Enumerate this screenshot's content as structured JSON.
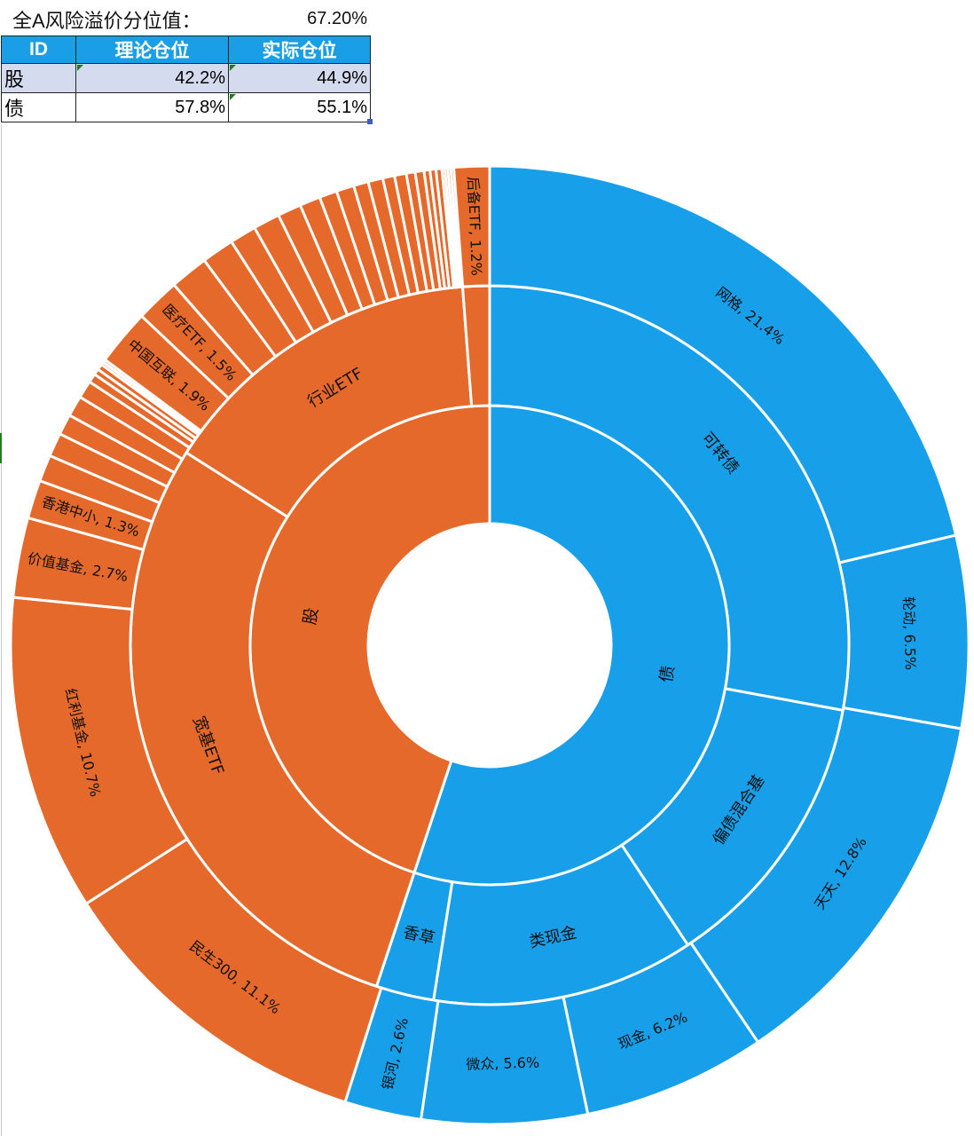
{
  "header": {
    "label": "全A风险溢价分位值：",
    "value": "67.20%"
  },
  "position_table": {
    "columns": [
      "ID",
      "理论仓位",
      "实际仓位"
    ],
    "rows": [
      {
        "id": "股",
        "theoretical": "42.2%",
        "actual": "44.9%"
      },
      {
        "id": "债",
        "theoretical": "57.8%",
        "actual": "55.1%"
      }
    ]
  },
  "chart_data": {
    "type": "sunburst",
    "colors": {
      "股": "#e5692a",
      "债": "#189fe9"
    },
    "rings": [
      {
        "level": "inner",
        "segments": [
          {
            "label": "债",
            "value": 55.1,
            "group": "债"
          },
          {
            "label": "股",
            "value": 44.9,
            "group": "股"
          }
        ]
      },
      {
        "level": "middle",
        "segments": [
          {
            "label": "可转债",
            "value": 27.9,
            "group": "债"
          },
          {
            "label": "偏债混合基",
            "value": 12.8,
            "group": "债"
          },
          {
            "label": "类现金",
            "value": 11.8,
            "group": "债"
          },
          {
            "label": "香草",
            "value": 2.6,
            "group": "债"
          },
          {
            "label": "宽基ETF",
            "value": 28.9,
            "group": "股"
          },
          {
            "label": "行业ETF",
            "value": 14.8,
            "group": "股"
          },
          {
            "label": "",
            "value": 1.2,
            "group": "股"
          }
        ]
      },
      {
        "level": "outer",
        "segments": [
          {
            "label": "网格, 21.4%",
            "value": 21.4,
            "group": "债"
          },
          {
            "label": "轮动, 6.5%",
            "value": 6.5,
            "group": "债"
          },
          {
            "label": "天天, 12.8%",
            "value": 12.8,
            "group": "债"
          },
          {
            "label": "现金, 6.2%",
            "value": 6.2,
            "group": "债"
          },
          {
            "label": "微众, 5.6%",
            "value": 5.6,
            "group": "债"
          },
          {
            "label": "银河, 2.6%",
            "value": 2.6,
            "group": "债"
          },
          {
            "label": "民生300, 11.1%",
            "value": 11.1,
            "group": "股"
          },
          {
            "label": "红利基金, 10.7%",
            "value": 10.7,
            "group": "股"
          },
          {
            "label": "价值基金, 2.7%",
            "value": 2.7,
            "group": "股"
          },
          {
            "label": "香港中小, 1.3%",
            "value": 1.3,
            "group": "股"
          },
          {
            "label": "",
            "value": 0.9,
            "group": "股"
          },
          {
            "label": "",
            "value": 0.8,
            "group": "股"
          },
          {
            "label": "",
            "value": 0.7,
            "group": "股"
          },
          {
            "label": "",
            "value": 0.7,
            "group": "股"
          },
          {
            "label": "",
            "value": 0.6,
            "group": "股"
          },
          {
            "label": "",
            "value": 0.3,
            "group": "股"
          },
          {
            "label": "",
            "value": 0.2,
            "group": "股"
          },
          {
            "label": "",
            "value": 0.2,
            "group": "股"
          },
          {
            "label": "",
            "value": 0.1,
            "group": "股"
          },
          {
            "label": "",
            "value": 0.1,
            "group": "股"
          },
          {
            "label": "中国互联, 1.9%",
            "value": 1.9,
            "group": "股"
          },
          {
            "label": "医疗ETF, 1.5%",
            "value": 1.5,
            "group": "股"
          },
          {
            "label": "",
            "value": 1.3,
            "group": "股"
          },
          {
            "label": "",
            "value": 1.1,
            "group": "股"
          },
          {
            "label": "",
            "value": 0.9,
            "group": "股"
          },
          {
            "label": "",
            "value": 0.9,
            "group": "股"
          },
          {
            "label": "",
            "value": 0.8,
            "group": "股"
          },
          {
            "label": "",
            "value": 0.7,
            "group": "股"
          },
          {
            "label": "",
            "value": 0.6,
            "group": "股"
          },
          {
            "label": "",
            "value": 0.6,
            "group": "股"
          },
          {
            "label": "",
            "value": 0.5,
            "group": "股"
          },
          {
            "label": "",
            "value": 0.5,
            "group": "股"
          },
          {
            "label": "",
            "value": 0.4,
            "group": "股"
          },
          {
            "label": "",
            "value": 0.4,
            "group": "股"
          },
          {
            "label": "",
            "value": 0.3,
            "group": "股"
          },
          {
            "label": "",
            "value": 0.3,
            "group": "股"
          },
          {
            "label": "",
            "value": 0.2,
            "group": "股"
          },
          {
            "label": "",
            "value": 0.2,
            "group": "股"
          },
          {
            "label": "",
            "value": 0.2,
            "group": "股"
          },
          {
            "label": "",
            "value": 0.1,
            "group": "股"
          },
          {
            "label": "",
            "value": 0.1,
            "group": "股"
          },
          {
            "label": "",
            "value": 0.1,
            "group": "股"
          },
          {
            "label": "",
            "value": 0.1,
            "group": "股"
          },
          {
            "label": "后备ETF, 1.2%",
            "value": 1.2,
            "group": "股"
          }
        ]
      }
    ]
  }
}
